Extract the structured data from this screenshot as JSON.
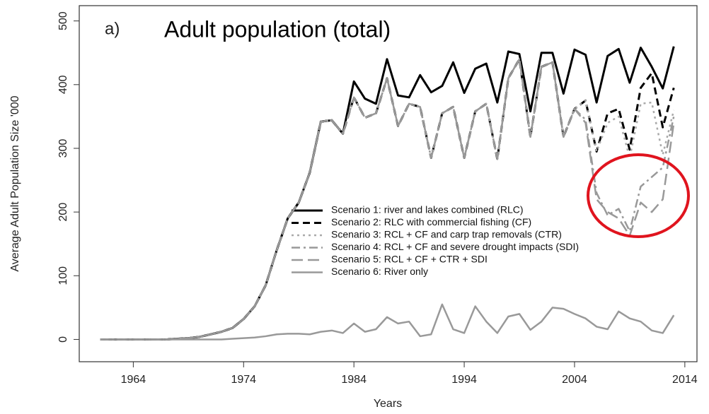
{
  "chart_data": {
    "type": "line",
    "title": "Adult population (total)",
    "annotation": "a)",
    "x_label": "Years",
    "y_label": "Average Adult Population Size '000",
    "x": [
      1961,
      1962,
      1963,
      1964,
      1965,
      1966,
      1967,
      1968,
      1969,
      1970,
      1971,
      1972,
      1973,
      1974,
      1975,
      1976,
      1977,
      1978,
      1979,
      1980,
      1981,
      1982,
      1983,
      1984,
      1985,
      1986,
      1987,
      1988,
      1989,
      1990,
      1991,
      1992,
      1993,
      1994,
      1995,
      1996,
      1997,
      1998,
      1999,
      2000,
      2001,
      2002,
      2003,
      2004,
      2005,
      2006,
      2007,
      2008,
      2009,
      2010,
      2011,
      2012,
      2013
    ],
    "series": [
      {
        "name": "Scenario 1: river and lakes combined (RLC)",
        "color": "#000000",
        "dash": "solid",
        "values": [
          0,
          0,
          0,
          0,
          0,
          0,
          0,
          1,
          2,
          4,
          8,
          12,
          18,
          32,
          52,
          85,
          140,
          190,
          215,
          262,
          342,
          344,
          323,
          405,
          378,
          370,
          440,
          383,
          380,
          415,
          388,
          398,
          435,
          387,
          425,
          433,
          372,
          452,
          448,
          358,
          450,
          450,
          386,
          455,
          447,
          372,
          445,
          456,
          403,
          458,
          428,
          394,
          460
        ]
      },
      {
        "name": "Scenario 2: RLC with commercial fishing (CF)",
        "color": "#000000",
        "dash": "dashed",
        "values": [
          0,
          0,
          0,
          0,
          0,
          0,
          0,
          1,
          2,
          4,
          8,
          12,
          18,
          32,
          52,
          85,
          140,
          190,
          215,
          262,
          342,
          344,
          323,
          380,
          348,
          355,
          410,
          335,
          370,
          365,
          285,
          355,
          365,
          285,
          358,
          370,
          283,
          410,
          440,
          318,
          428,
          435,
          318,
          362,
          375,
          295,
          355,
          362,
          298,
          395,
          418,
          333,
          395
        ]
      },
      {
        "name": "Scenario 3: RCL + CF and carp trap removals (CTR)",
        "color": "#aaaaaa",
        "dash": "dotted",
        "values": [
          0,
          0,
          0,
          0,
          0,
          0,
          0,
          1,
          2,
          4,
          8,
          12,
          18,
          32,
          52,
          85,
          140,
          190,
          215,
          262,
          342,
          344,
          323,
          380,
          348,
          355,
          410,
          335,
          370,
          365,
          285,
          355,
          365,
          285,
          358,
          370,
          283,
          410,
          440,
          318,
          428,
          435,
          318,
          362,
          375,
          295,
          340,
          350,
          285,
          370,
          372,
          290,
          360
        ]
      },
      {
        "name": "Scenario 4: RCL + CF and severe drought impacts (SDI)",
        "color": "#999999",
        "dash": "dashdot",
        "values": [
          0,
          0,
          0,
          0,
          0,
          0,
          0,
          1,
          2,
          4,
          8,
          12,
          18,
          32,
          52,
          85,
          140,
          190,
          215,
          262,
          342,
          344,
          323,
          380,
          348,
          355,
          410,
          335,
          370,
          365,
          285,
          355,
          365,
          285,
          358,
          370,
          283,
          410,
          440,
          318,
          428,
          435,
          318,
          362,
          345,
          230,
          195,
          205,
          170,
          240,
          255,
          270,
          350
        ]
      },
      {
        "name": "Scenario 5: RCL + CF + CTR + SDI",
        "color": "#999999",
        "dash": "longdash",
        "values": [
          0,
          0,
          0,
          0,
          0,
          0,
          0,
          1,
          2,
          4,
          8,
          12,
          18,
          32,
          52,
          85,
          140,
          190,
          215,
          262,
          342,
          344,
          323,
          380,
          348,
          355,
          410,
          335,
          370,
          365,
          285,
          355,
          365,
          285,
          358,
          370,
          283,
          410,
          440,
          318,
          428,
          435,
          318,
          362,
          340,
          220,
          200,
          190,
          163,
          215,
          200,
          220,
          340
        ]
      },
      {
        "name": "Scenario 6: River only",
        "color": "#999999",
        "dash": "solid",
        "values": [
          0,
          0,
          0,
          0,
          0,
          0,
          0,
          0,
          0,
          0,
          0,
          0,
          1,
          2,
          3,
          5,
          8,
          9,
          9,
          8,
          12,
          14,
          10,
          25,
          12,
          16,
          35,
          25,
          28,
          5,
          8,
          55,
          16,
          10,
          52,
          28,
          10,
          36,
          40,
          15,
          28,
          50,
          48,
          40,
          33,
          20,
          16,
          44,
          33,
          28,
          14,
          10,
          38
        ]
      }
    ],
    "xlim": [
      1959.1,
      2015.1
    ],
    "xticks": [
      1964,
      1974,
      1984,
      1994,
      2004,
      2014
    ],
    "ylim": [
      -35,
      524
    ],
    "yticks": [
      0,
      100,
      200,
      300,
      400,
      500
    ]
  }
}
